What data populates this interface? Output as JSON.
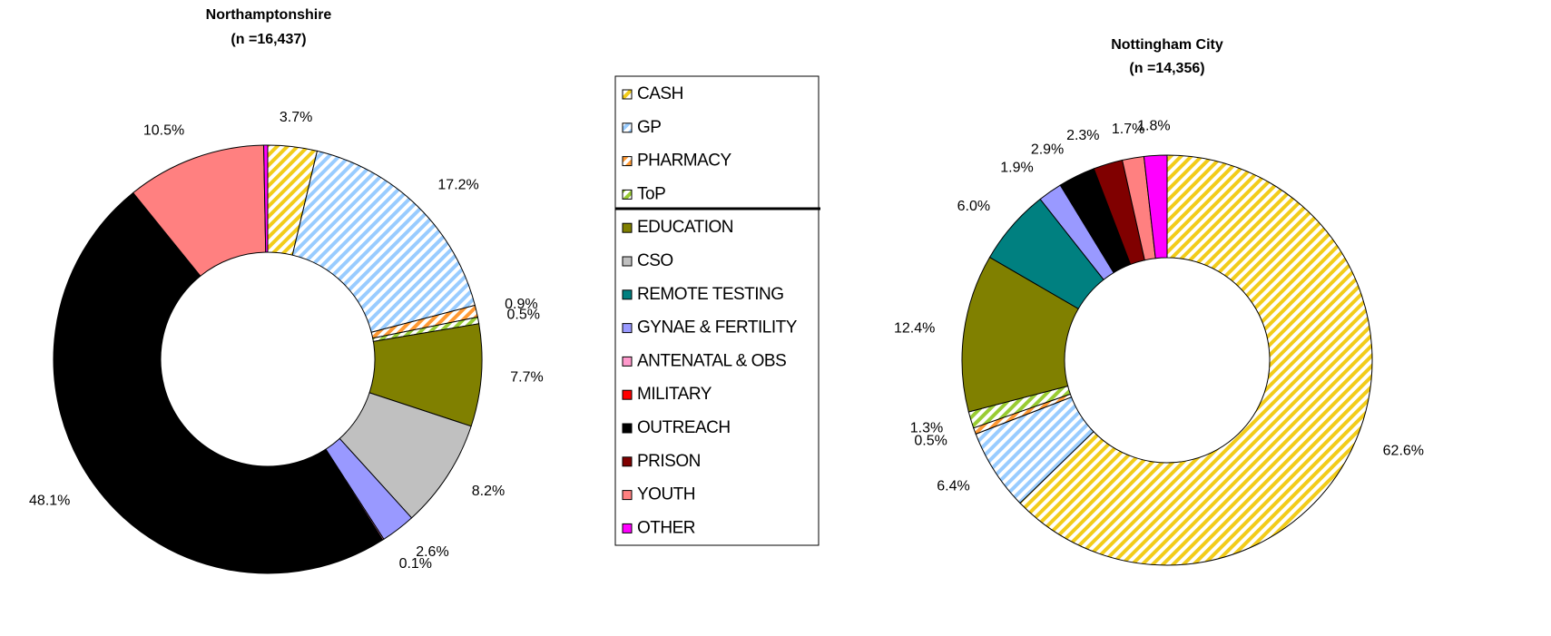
{
  "legend": {
    "categories": [
      "CASH",
      "GP",
      "PHARMACY",
      "ToP",
      "EDUCATION",
      "CSO",
      "REMOTE TESTING",
      "GYNAE & FERTILITY",
      "ANTENATAL & OBS",
      "MILITARY",
      "OUTREACH",
      "PRISON",
      "YOUTH",
      "OTHER"
    ],
    "colors": [
      "#f2cc1a",
      "#99ccff",
      "#ff9933",
      "#99cc33",
      "#808000",
      "#c0c0c0",
      "#008080",
      "#9999ff",
      "#ff99cc",
      "#ff0000",
      "#000000",
      "#800000",
      "#ff8080",
      "#ff00ff"
    ],
    "hatched": [
      true,
      true,
      true,
      true,
      false,
      false,
      false,
      false,
      false,
      false,
      false,
      false,
      false,
      false
    ]
  },
  "chart_data": [
    {
      "type": "pie",
      "title": "Northamptonshire",
      "subtitle": "(n =16,437)",
      "values": [
        3.7,
        17.2,
        0.9,
        0.5,
        7.7,
        8.2,
        0,
        2.6,
        0.1,
        0,
        48.1,
        0,
        10.5,
        0.3
      ],
      "value_labels": [
        "3.7%",
        "17.2%",
        "0.9%",
        "0.5%",
        "7.7%",
        "8.2%",
        null,
        "2.6%",
        "0.1%",
        null,
        "48.1%",
        null,
        "10.5%",
        null
      ]
    },
    {
      "type": "pie",
      "title": "Nottingham City",
      "subtitle": "(n =14,356)",
      "values": [
        62.6,
        6.4,
        0.5,
        1.3,
        12.4,
        0,
        6.0,
        1.9,
        0,
        0,
        2.9,
        2.3,
        1.7,
        1.8
      ],
      "value_labels": [
        "62.6%",
        "6.4%",
        "0.5%",
        "1.3%",
        "12.4%",
        null,
        "6.0%",
        "1.9%",
        null,
        null,
        "2.9%",
        "2.3%",
        "1.7%",
        "1.8%"
      ]
    }
  ]
}
